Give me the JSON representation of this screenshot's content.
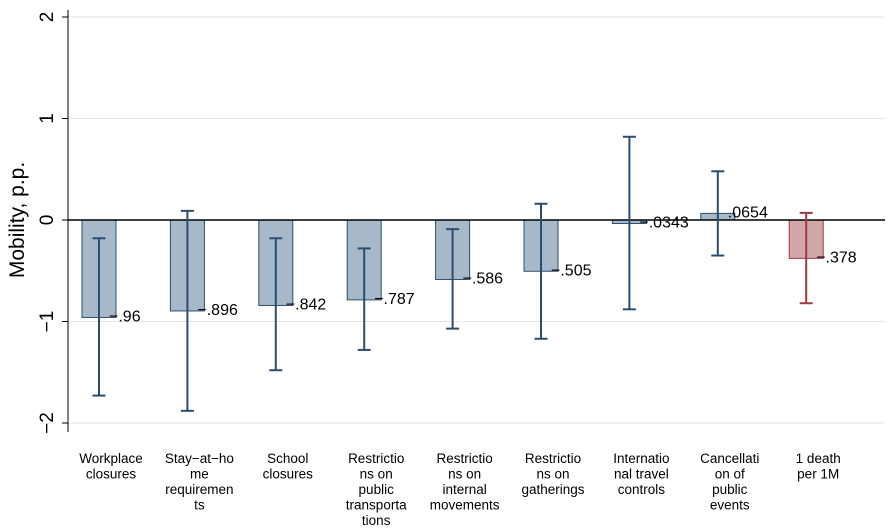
{
  "chart_data": {
    "type": "bar",
    "ylabel": "Mobility, p.p.",
    "ylim": [
      -2.1,
      2.0
    ],
    "yticks": [
      -2,
      -1,
      0,
      1,
      2
    ],
    "ytick_labels": [
      "−2",
      "−1",
      "0",
      "1",
      "2"
    ],
    "grid": true,
    "categories": [
      [
        "Workplace",
        "closures"
      ],
      [
        "Stay−at−ho",
        "me",
        "requiremen",
        "ts"
      ],
      [
        "School",
        "closures"
      ],
      [
        "Restrictio",
        "ns on",
        "public",
        "transporta",
        "tions"
      ],
      [
        "Restrictio",
        "ns on",
        "internal",
        "movements"
      ],
      [
        "Restrictio",
        "ns on",
        "gatherings"
      ],
      [
        "Internatio",
        "nal travel",
        "controls"
      ],
      [
        "Cancellati",
        "on of",
        "public",
        "events"
      ],
      [
        "1 death",
        "per 1M"
      ]
    ],
    "values": [
      -0.96,
      -0.896,
      -0.842,
      -0.787,
      -0.586,
      -0.505,
      -0.0343,
      0.0654,
      -0.378
    ],
    "value_labels": [
      "−.96",
      "−.896",
      "−.842",
      "−.787",
      "−.586",
      "−.505",
      "−.0343",
      ".0654",
      "−.378"
    ],
    "ci_low": [
      -1.73,
      -1.88,
      -1.48,
      -1.28,
      -1.07,
      -1.17,
      -0.88,
      -0.35,
      -0.82
    ],
    "ci_high": [
      -0.18,
      0.09,
      -0.18,
      -0.28,
      -0.09,
      0.16,
      0.82,
      0.48,
      0.07
    ],
    "colors": {
      "bar_fill": "#a7b8c9",
      "bar_stroke": "#2c4e6e",
      "highlight_fill": "#d3a6a8",
      "highlight_stroke": "#9b3b42",
      "grid": "#e4e4e4",
      "zero_line": "#000000"
    },
    "highlight_index": 8
  }
}
